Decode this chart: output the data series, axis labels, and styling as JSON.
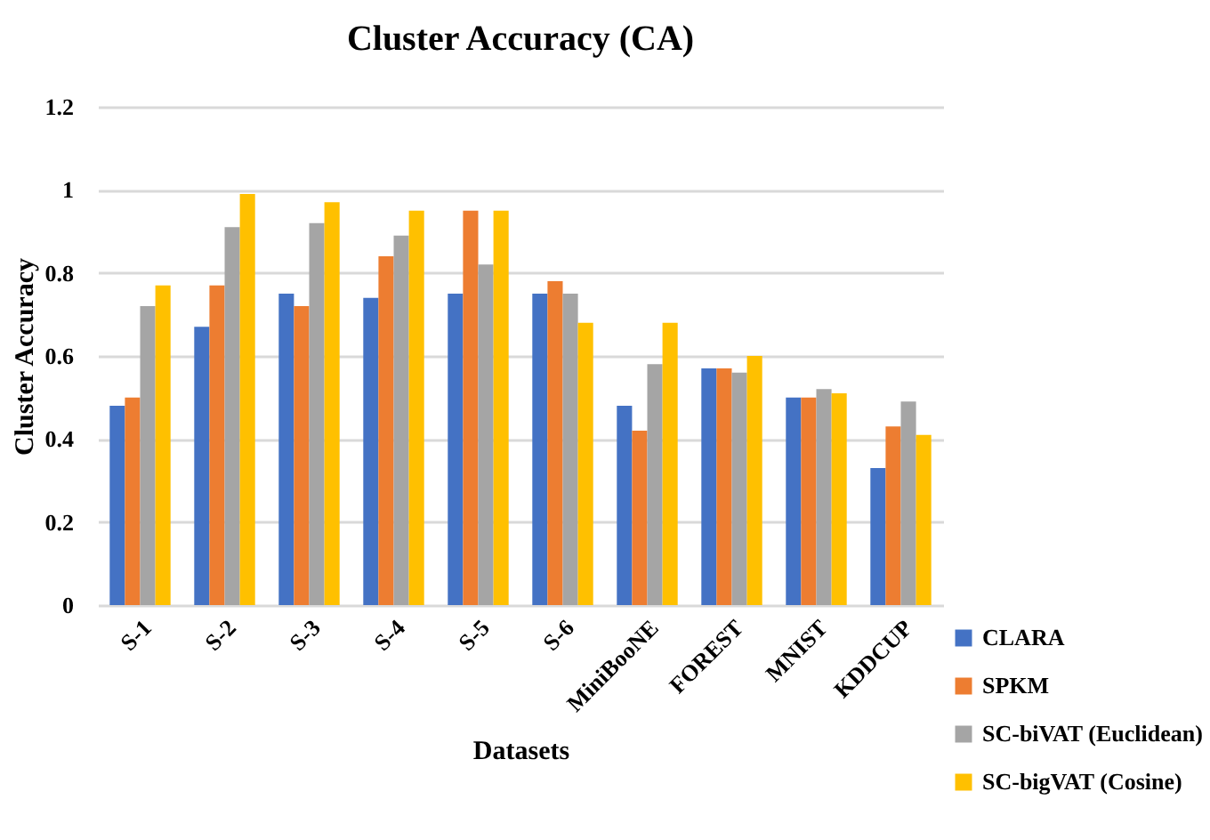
{
  "chart_data": {
    "type": "bar",
    "title": "Cluster Accuracy (CA)",
    "xlabel": "Datasets",
    "ylabel": "Cluster Accuracy",
    "categories": [
      "S-1",
      "S-2",
      "S-3",
      "S-4",
      "S-5",
      "S-6",
      "MiniBooNE",
      "FOREST",
      "MNIST",
      "KDDCUP"
    ],
    "series": [
      {
        "name": "CLARA",
        "color": "#4472c4",
        "values": [
          0.48,
          0.67,
          0.75,
          0.74,
          0.75,
          0.75,
          0.48,
          0.57,
          0.5,
          0.33
        ]
      },
      {
        "name": "SPKM",
        "color": "#ed7d31",
        "values": [
          0.5,
          0.77,
          0.72,
          0.84,
          0.95,
          0.78,
          0.42,
          0.57,
          0.5,
          0.43
        ]
      },
      {
        "name": "SC-biVAT (Euclidean)",
        "color": "#a5a5a5",
        "values": [
          0.72,
          0.91,
          0.92,
          0.89,
          0.82,
          0.75,
          0.58,
          0.56,
          0.52,
          0.49
        ]
      },
      {
        "name": "SC-bigVAT (Cosine)",
        "color": "#ffc000",
        "values": [
          0.77,
          0.99,
          0.97,
          0.95,
          0.95,
          0.68,
          0.68,
          0.6,
          0.51,
          0.41
        ]
      }
    ],
    "ylim": [
      0,
      1.2
    ],
    "yticks": [
      0,
      0.2,
      0.4,
      0.6,
      0.8,
      1,
      1.2
    ],
    "grid": "y",
    "legend": "bottom right"
  }
}
